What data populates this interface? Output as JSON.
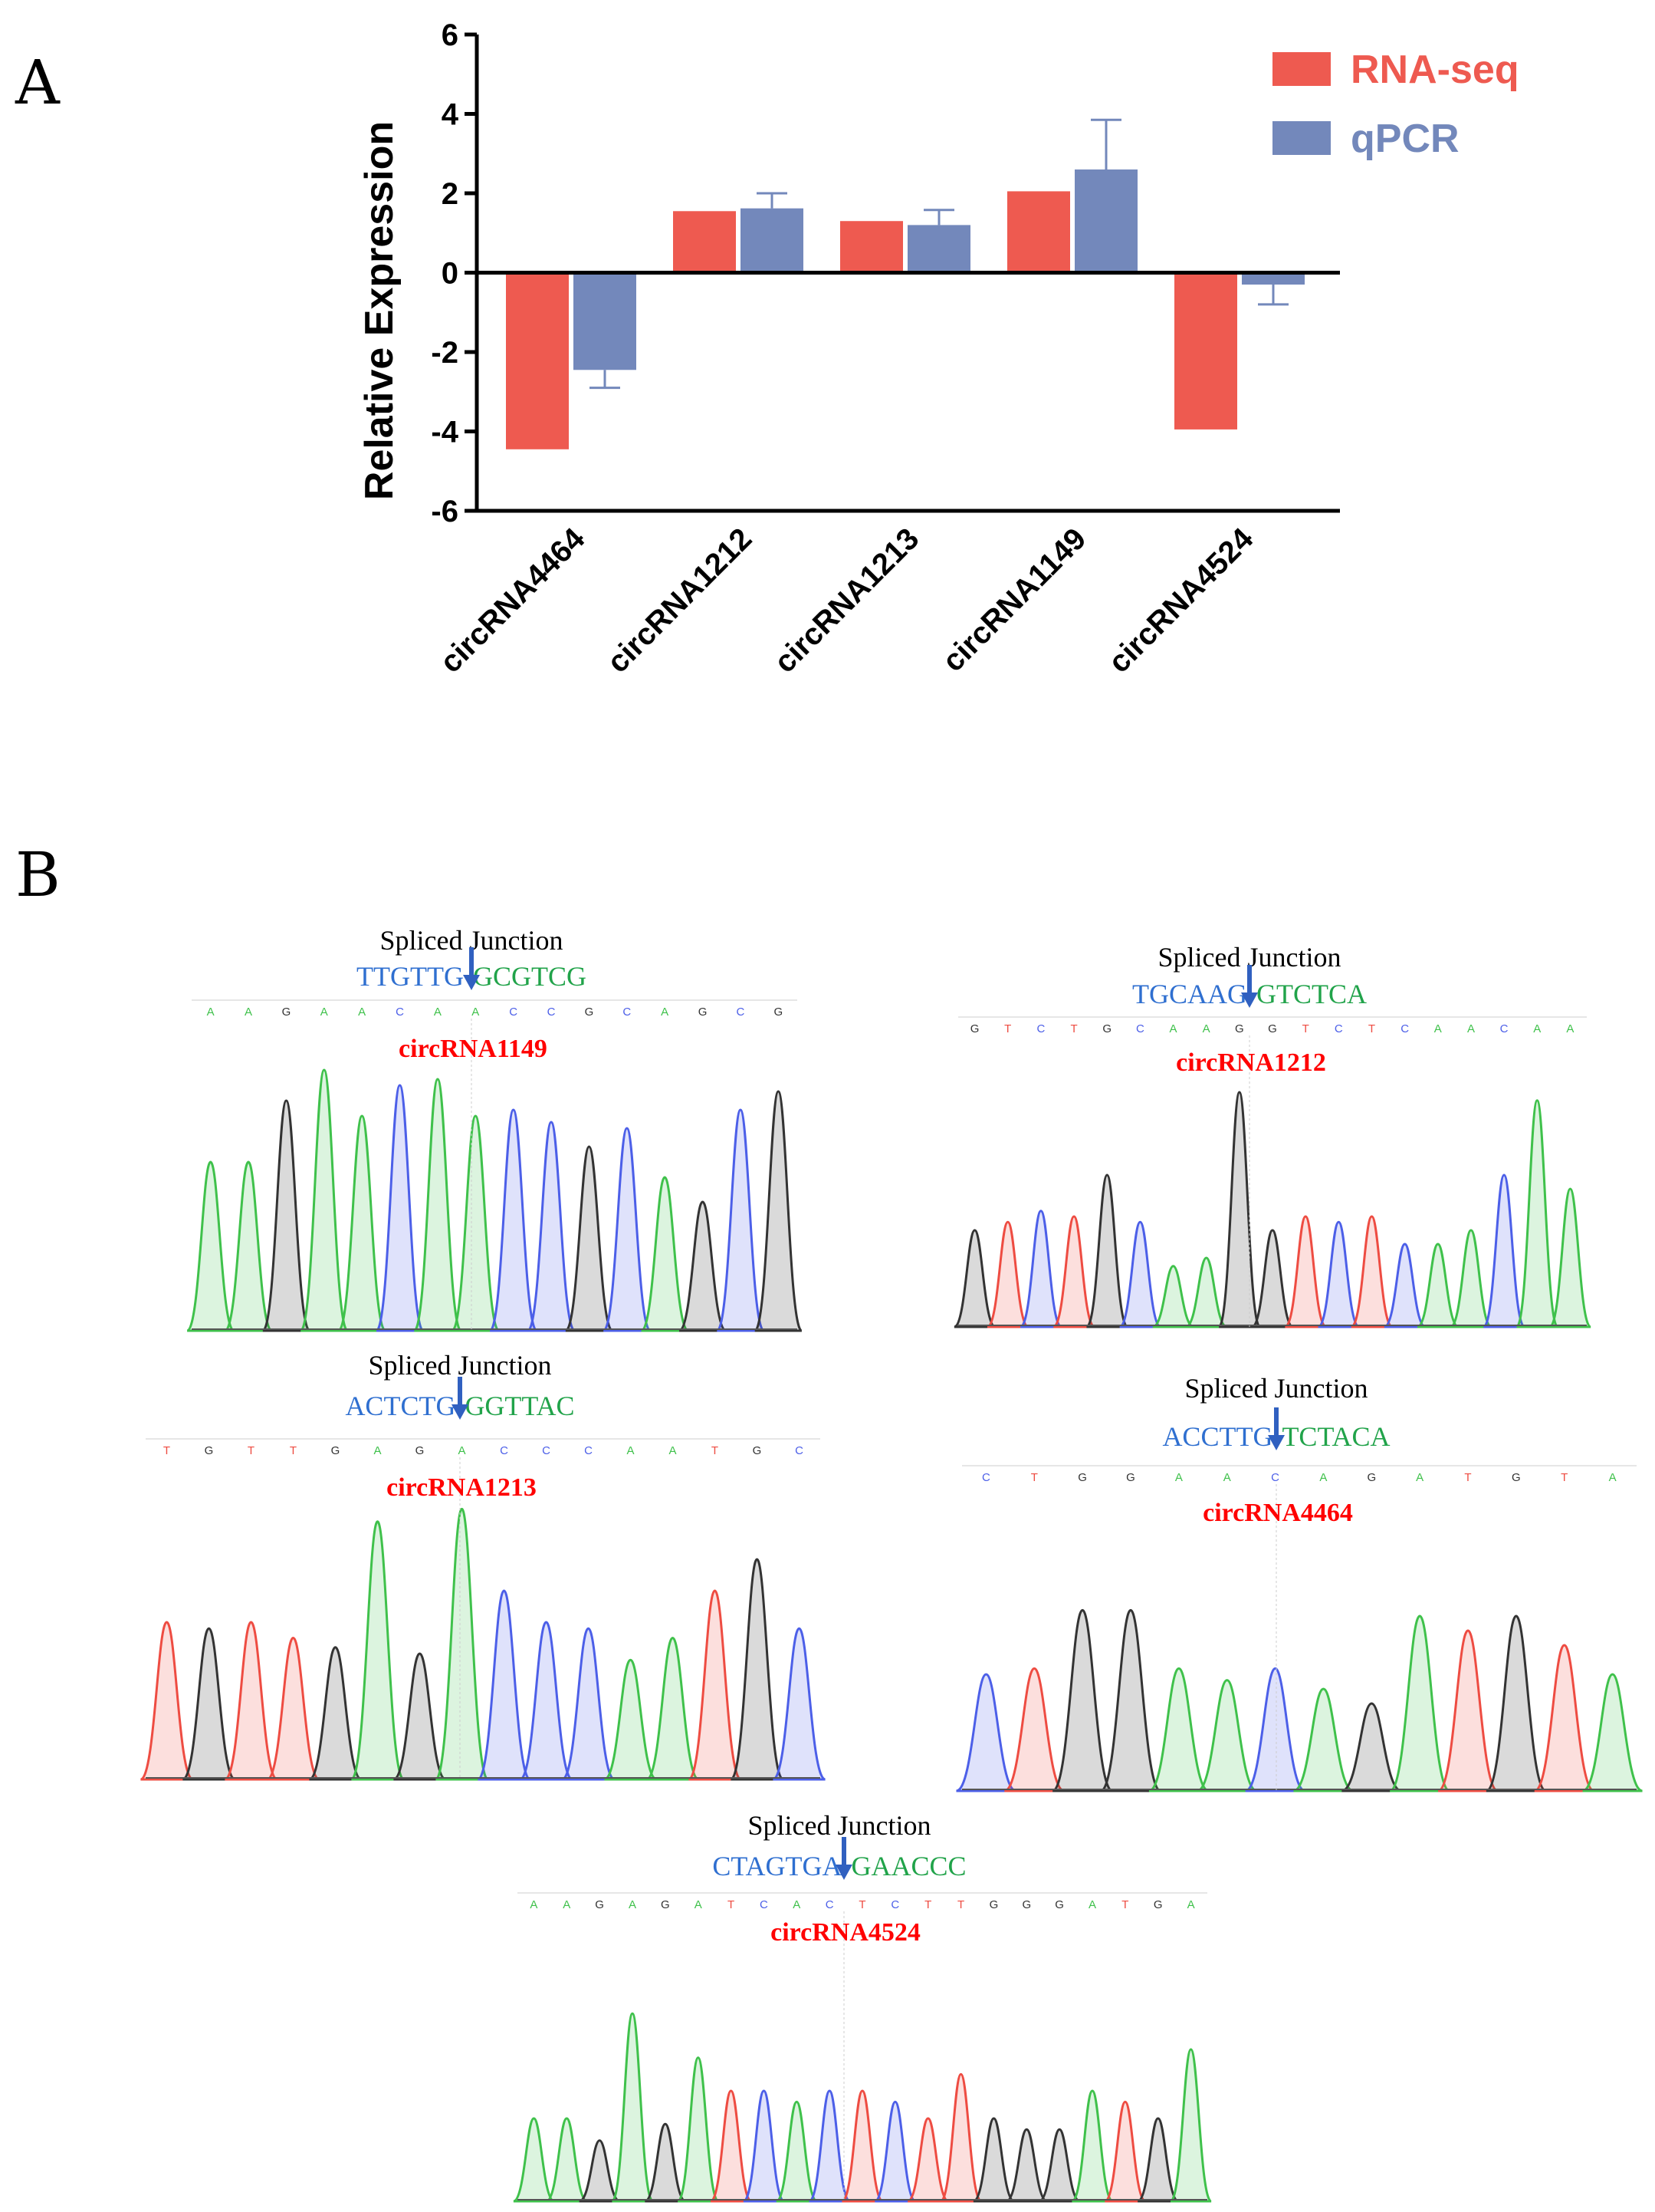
{
  "figure": {
    "panel_a_label": "A",
    "panel_b_label": "B"
  },
  "colors": {
    "rna_seq": "#ee5a50",
    "qpcr": "#7388bb",
    "base_A": "#3fc14b",
    "base_C": "#4c5fe8",
    "base_G": "#333333",
    "base_T": "#ee4c42",
    "seq_left": "#2f6fd0",
    "seq_right": "#21a34a",
    "arrow": "#3060c0",
    "circ_name": "#ff0000"
  },
  "chart_data": {
    "type": "bar",
    "ylabel": "Relative Expression",
    "xlabel": "",
    "ylim": [
      -6,
      6
    ],
    "yticks": [
      6,
      4,
      2,
      0,
      -2,
      -4,
      -6
    ],
    "grid": false,
    "legend_position": "top-right",
    "categories": [
      "circRNA4464",
      "circRNA1212",
      "circRNA1213",
      "circRNA1149",
      "circRNA4524"
    ],
    "series": [
      {
        "name": "RNA-seq",
        "values": [
          -4.45,
          1.55,
          1.3,
          2.05,
          -3.95
        ],
        "errors": [
          0,
          0,
          0,
          0,
          0
        ]
      },
      {
        "name": "qPCR",
        "values": [
          -2.45,
          1.62,
          1.2,
          2.6,
          -0.3
        ],
        "errors": [
          0.45,
          0.38,
          0.38,
          1.25,
          0.5
        ]
      }
    ]
  },
  "chromatograms": [
    {
      "name": "circRNA1149",
      "title": "Spliced Junction",
      "seq_left": "TTGTTG",
      "seq_right": "GCGTCG",
      "bases": [
        "A",
        "A",
        "G",
        "A",
        "A",
        "C",
        "A",
        "A",
        "C",
        "C",
        "G",
        "C",
        "A",
        "G",
        "C",
        "G"
      ]
    },
    {
      "name": "circRNA1212",
      "title": "Spliced Junction",
      "seq_left": "TGCAAG",
      "seq_right": "GTCTCA",
      "bases": [
        "G",
        "T",
        "C",
        "T",
        "G",
        "C",
        "A",
        "A",
        "G",
        "G",
        "T",
        "C",
        "T",
        "C",
        "A",
        "A",
        "C",
        "A",
        "A"
      ]
    },
    {
      "name": "circRNA1213",
      "title": "Spliced Junction",
      "seq_left": "ACTCTG",
      "seq_right": "GGTTAC",
      "bases": [
        "T",
        "G",
        "T",
        "T",
        "G",
        "A",
        "G",
        "A",
        "C",
        "C",
        "C",
        "A",
        "A",
        "T",
        "G",
        "C"
      ]
    },
    {
      "name": "circRNA4464",
      "title": "Spliced Junction",
      "seq_left": "ACCTTG",
      "seq_right": "TCTACA",
      "bases": [
        "C",
        "T",
        "G",
        "G",
        "A",
        "A",
        "C",
        "A",
        "G",
        "A",
        "T",
        "G",
        "T",
        "A"
      ]
    },
    {
      "name": "circRNA4524",
      "title": "Spliced Junction",
      "seq_left": "CTAGTGA",
      "seq_right": "GAACCC",
      "bases": [
        "A",
        "A",
        "G",
        "A",
        "G",
        "A",
        "T",
        "C",
        "A",
        "C",
        "T",
        "C",
        "T",
        "T",
        "G",
        "G",
        "G",
        "A",
        "T",
        "G",
        "A"
      ]
    }
  ]
}
